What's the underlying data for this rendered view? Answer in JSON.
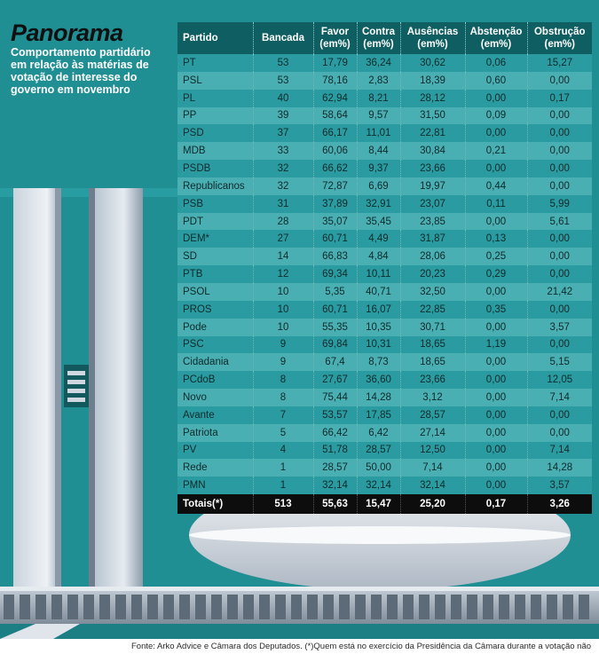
{
  "header": {
    "title": "Panorama",
    "subtitle": "Comportamento partidário em relação às matérias de votação de interesse do governo em novembro"
  },
  "table": {
    "columns": [
      "Partido",
      "Bancada",
      "Favor (em%)",
      "Contra (em%)",
      "Ausências (em%)",
      "Abstenção (em%)",
      "Obstrução (em%)"
    ],
    "rows": [
      [
        "PT",
        "53",
        "17,79",
        "36,24",
        "30,62",
        "0,06",
        "15,27"
      ],
      [
        "PSL",
        "53",
        "78,16",
        "2,83",
        "18,39",
        "0,60",
        "0,00"
      ],
      [
        "PL",
        "40",
        "62,94",
        "8,21",
        "28,12",
        "0,00",
        "0,17"
      ],
      [
        "PP",
        "39",
        "58,64",
        "9,57",
        "31,50",
        "0,09",
        "0,00"
      ],
      [
        "PSD",
        "37",
        "66,17",
        "11,01",
        "22,81",
        "0,00",
        "0,00"
      ],
      [
        "MDB",
        "33",
        "60,06",
        "8,44",
        "30,84",
        "0,21",
        "0,00"
      ],
      [
        "PSDB",
        "32",
        "66,62",
        "9,37",
        "23,66",
        "0,00",
        "0,00"
      ],
      [
        "Republicanos",
        "32",
        "72,87",
        "6,69",
        "19,97",
        "0,44",
        "0,00"
      ],
      [
        "PSB",
        "31",
        "37,89",
        "32,91",
        "23,07",
        "0,11",
        "5,99"
      ],
      [
        "PDT",
        "28",
        "35,07",
        "35,45",
        "23,85",
        "0,00",
        "5,61"
      ],
      [
        "DEM*",
        "27",
        "60,71",
        "4,49",
        "31,87",
        "0,13",
        "0,00"
      ],
      [
        "SD",
        "14",
        "66,83",
        "4,84",
        "28,06",
        "0,25",
        "0,00"
      ],
      [
        "PTB",
        "12",
        "69,34",
        "10,11",
        "20,23",
        "0,29",
        "0,00"
      ],
      [
        "PSOL",
        "10",
        "5,35",
        "40,71",
        "32,50",
        "0,00",
        "21,42"
      ],
      [
        "PROS",
        "10",
        "60,71",
        "16,07",
        "22,85",
        "0,35",
        "0,00"
      ],
      [
        "Pode",
        "10",
        "55,35",
        "10,35",
        "30,71",
        "0,00",
        "3,57"
      ],
      [
        "PSC",
        "9",
        "69,84",
        "10,31",
        "18,65",
        "1,19",
        "0,00"
      ],
      [
        "Cidadania",
        "9",
        "67,4",
        "8,73",
        "18,65",
        "0,00",
        "5,15"
      ],
      [
        "PCdoB",
        "8",
        "27,67",
        "36,60",
        "23,66",
        "0,00",
        "12,05"
      ],
      [
        "Novo",
        "8",
        "75,44",
        "14,28",
        "3,12",
        "0,00",
        "7,14"
      ],
      [
        "Avante",
        "7",
        "53,57",
        "17,85",
        "28,57",
        "0,00",
        "0,00"
      ],
      [
        "Patriota",
        "5",
        "66,42",
        "6,42",
        "27,14",
        "0,00",
        "0,00"
      ],
      [
        "PV",
        "4",
        "51,78",
        "28,57",
        "12,50",
        "0,00",
        "7,14"
      ],
      [
        "Rede",
        "1",
        "28,57",
        "50,00",
        "7,14",
        "0,00",
        "14,28"
      ],
      [
        "PMN",
        "1",
        "32,14",
        "32,14",
        "32,14",
        "0,00",
        "3,57"
      ]
    ],
    "totals": [
      "Totais(*)",
      "513",
      "55,63",
      "15,47",
      "25,20",
      "0,17",
      "3,26"
    ]
  },
  "footer": {
    "text": "Fonte: Arko Advice e Câmara dos Deputados.   (*)Quem está no exercício da Presidência da Câmara durante a votação não"
  },
  "colors": {
    "background": "#1f8f94",
    "header_row": "#0f5f62",
    "row_dark": "#2a9ca1",
    "row_light": "#4aafb3",
    "totals_row": "#0d0d0d"
  }
}
